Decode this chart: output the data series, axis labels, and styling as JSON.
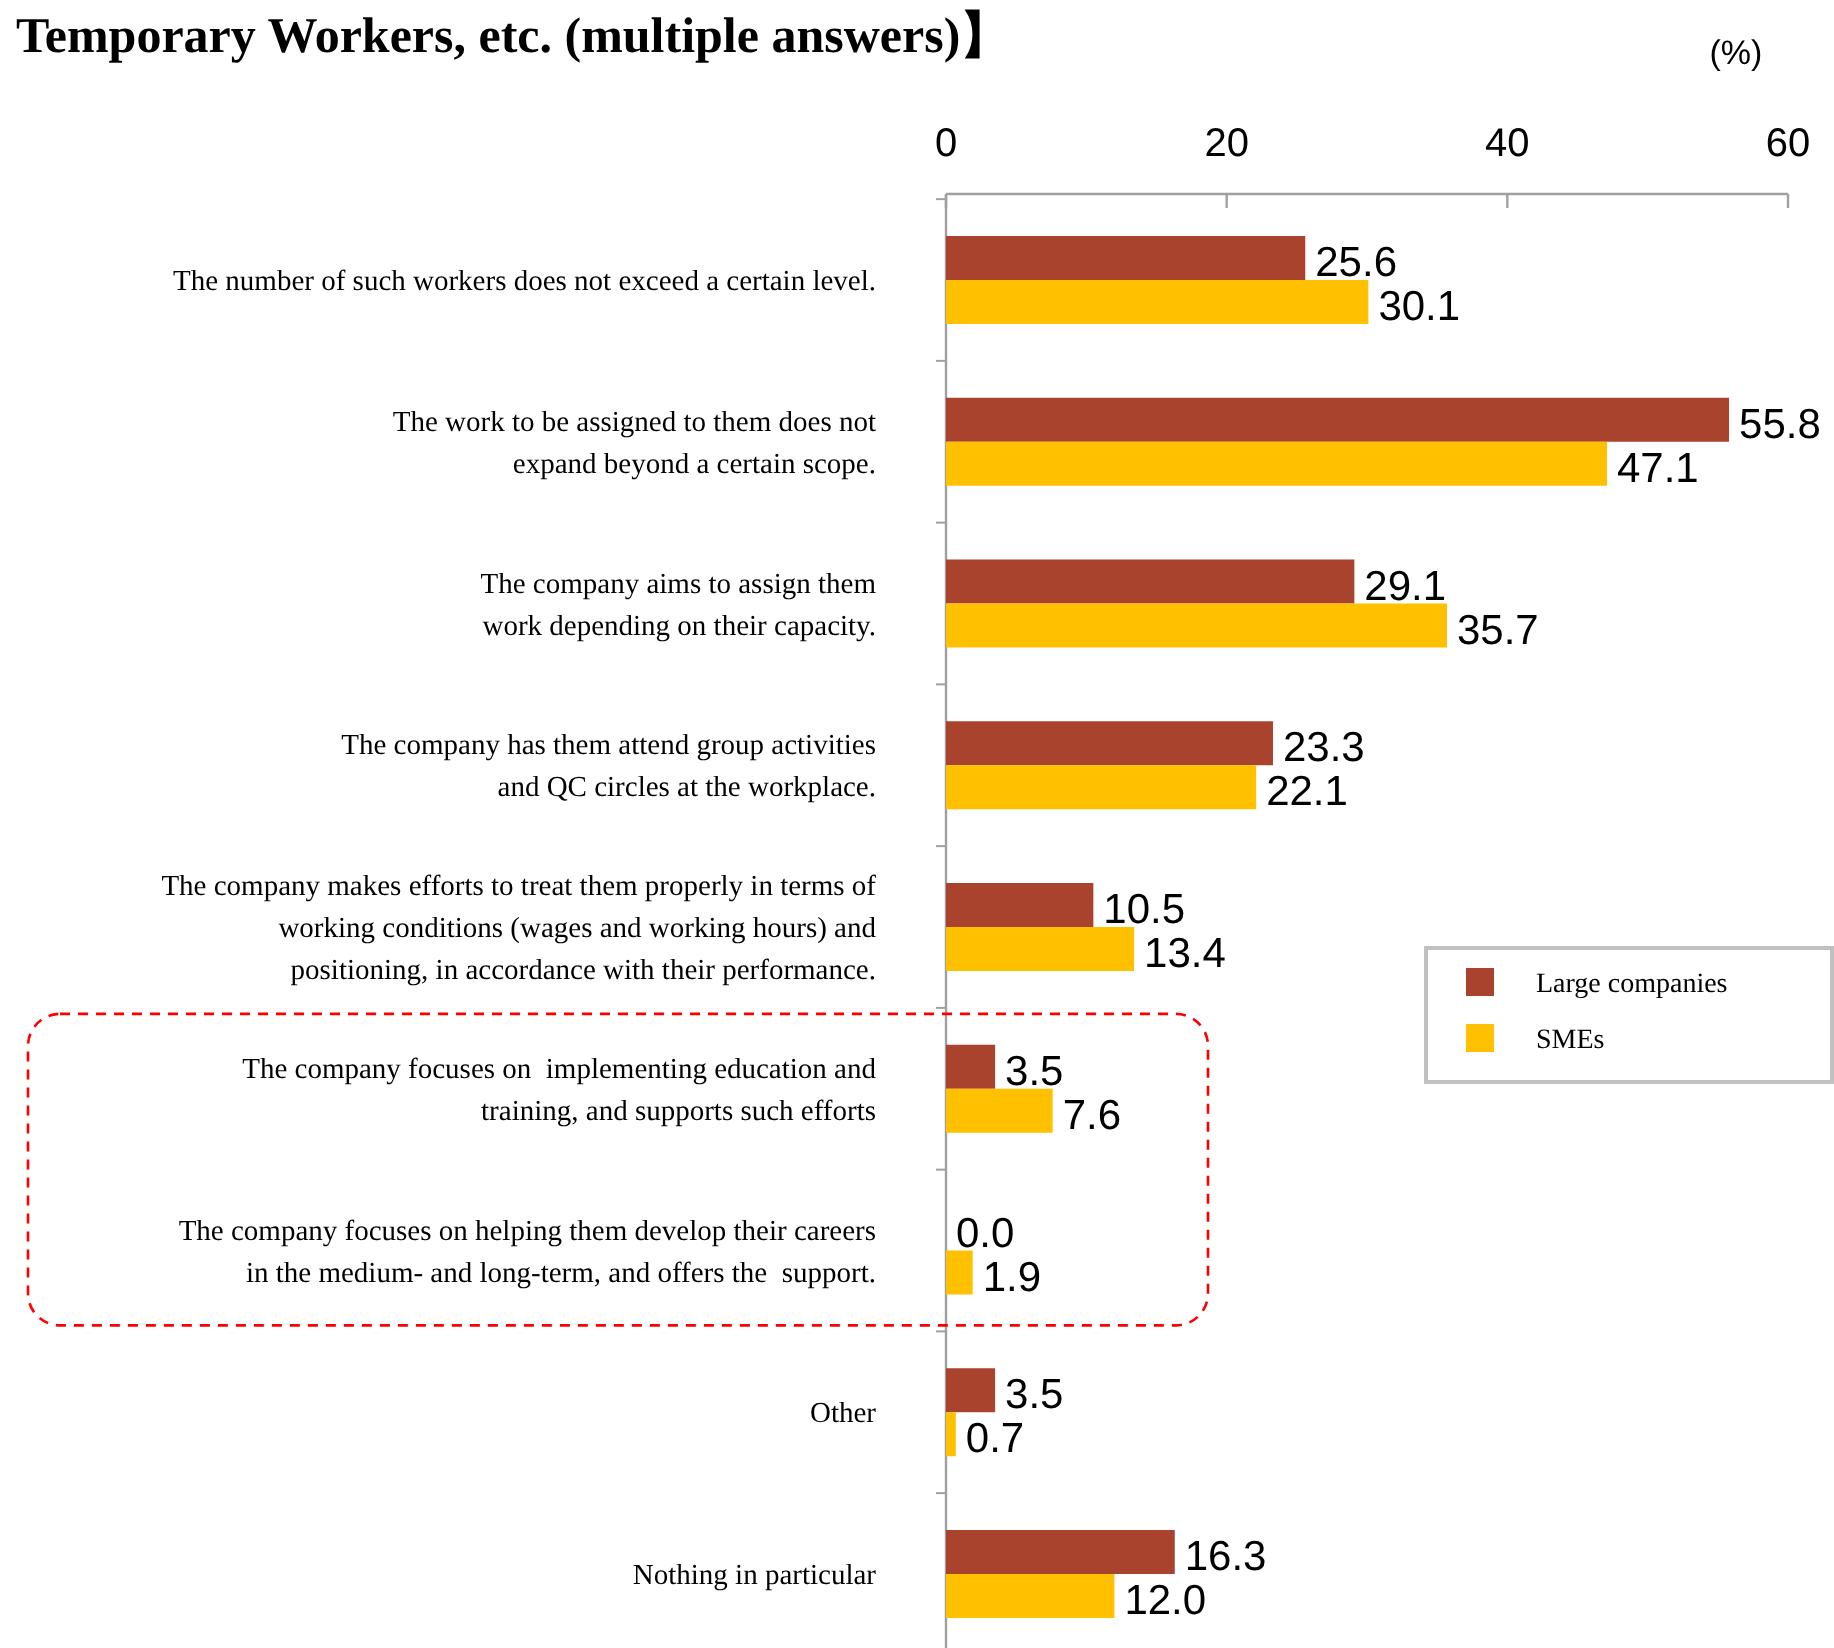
{
  "chart_data": {
    "type": "bar",
    "orientation": "horizontal",
    "title": "Temporary Workers, etc. (multiple answers)】",
    "categories": [
      "The number of such workers does not exceed a certain level.",
      "The work to be assigned to them does not\nexpand beyond a certain scope.",
      "The company aims to assign them\nwork depending on their capacity.",
      "The company has them attend group activities\nand QC circles at the workplace.",
      "The company makes efforts to treat them properly in terms of\nworking conditions (wages and working hours) and\npositioning, in accordance with their performance.",
      "The company focuses on  implementing education and\ntraining, and supports such efforts",
      "The company focuses on helping them develop their careers\nin the medium- and long-term, and offers the  support.",
      "Other",
      "Nothing in particular"
    ],
    "series": [
      {
        "name": "Large companies",
        "color": "#a9432d",
        "values": [
          25.6,
          55.8,
          29.1,
          23.3,
          10.5,
          3.5,
          0.0,
          3.5,
          16.3
        ],
        "value_labels": [
          "25.6",
          "55.8",
          "29.1",
          "23.3",
          "10.5",
          "3.5",
          "0.0",
          "3.5",
          "16.3"
        ]
      },
      {
        "name": "SMEs",
        "color": "#ffc000",
        "values": [
          30.1,
          47.1,
          35.7,
          22.1,
          13.4,
          7.6,
          1.9,
          0.7,
          12.0
        ],
        "value_labels": [
          "30.1",
          "47.1",
          "35.7",
          "22.1",
          "13.4",
          "7.6",
          "1.9",
          "0.7",
          "12.0"
        ]
      }
    ],
    "xlim": [
      0,
      60
    ],
    "xticks": [
      0,
      20,
      40,
      60
    ],
    "legend": "right",
    "annotations": [
      "(%)"
    ]
  }
}
